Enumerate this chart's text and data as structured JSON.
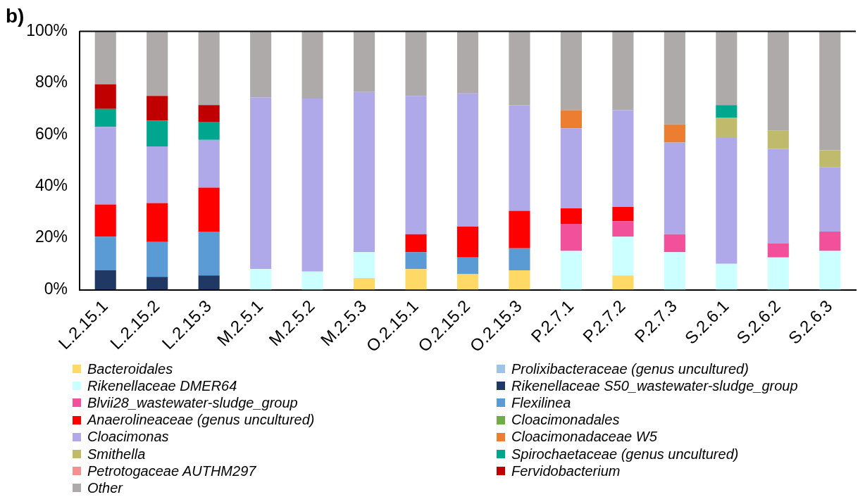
{
  "chart_data": {
    "type": "bar",
    "title": "b)",
    "stacked": true,
    "legend": "bottom",
    "grid": false,
    "categories": [
      "L.2.15.1",
      "L.2.15.2",
      "L.2.15.3",
      "M.2.5.1",
      "M.2.5.2",
      "M.2.5.3",
      "O.2.15.1",
      "O.2.15.2",
      "O.2.15.3",
      "P.2.7.1",
      "P.2.7.2",
      "P.2.7.3",
      "S.2.6.1",
      "S.2.6.2",
      "S.2.6.3"
    ],
    "ylim": [
      0,
      100
    ],
    "yticks": [
      {
        "value": 0,
        "label": "0%"
      },
      {
        "value": 20,
        "label": "20%"
      },
      {
        "value": 40,
        "label": "40%"
      },
      {
        "value": 60,
        "label": "60%"
      },
      {
        "value": 80,
        "label": "80%"
      },
      {
        "value": 100,
        "label": "100%"
      }
    ],
    "series": [
      {
        "name": "Bacteroidales",
        "color": "#ffd966",
        "values": [
          0,
          0,
          0,
          0,
          0,
          4.5,
          8,
          6,
          7.5,
          0,
          5.5,
          0,
          0,
          0,
          0
        ]
      },
      {
        "name": "Prolixibacteraceae (genus uncultured)",
        "color": "#9dc3e6",
        "values": [
          0,
          0,
          0,
          0,
          0,
          0,
          0,
          0,
          0,
          0,
          0,
          0,
          0,
          0,
          0
        ]
      },
      {
        "name": "Rikenellaceae DMER64",
        "color": "#ccffff",
        "values": [
          0,
          0,
          0,
          8,
          7,
          10,
          0,
          0,
          0,
          15,
          15,
          14.5,
          10,
          12.5,
          15
        ]
      },
      {
        "name": "Rikenellaceae S50_wastewater-sludge_group",
        "color": "#203864",
        "values": [
          7.5,
          5,
          5.5,
          0,
          0,
          0,
          0,
          0,
          0,
          0,
          0,
          0,
          0,
          0,
          0
        ]
      },
      {
        "name": "Blvii28_wastewater-sludge_group",
        "color": "#f2509a",
        "values": [
          0,
          0,
          0,
          0,
          0,
          0,
          0,
          0,
          0,
          10.5,
          6,
          7,
          0,
          5.5,
          7.5
        ]
      },
      {
        "name": "Flexilinea",
        "color": "#5b9bd5",
        "values": [
          13,
          13.5,
          17,
          0,
          0,
          0,
          6.5,
          6.5,
          8.5,
          0,
          0,
          0,
          0,
          0,
          0
        ]
      },
      {
        "name": "Anaerolineaceae (genus uncultured)",
        "color": "#ff0000",
        "values": [
          12.5,
          15,
          17,
          0,
          0,
          0,
          7,
          12,
          14.5,
          6,
          5.5,
          0,
          0,
          0,
          0
        ]
      },
      {
        "name": "Cloacimonadales",
        "color": "#70ad47",
        "values": [
          0,
          0,
          0,
          0,
          0,
          0,
          0,
          0,
          0,
          0,
          0,
          0,
          0,
          0,
          0
        ]
      },
      {
        "name": "Cloacimonas",
        "color": "#b0a9e9",
        "values": [
          30,
          22,
          18.5,
          66.5,
          67,
          62,
          53.5,
          51.5,
          41,
          31,
          37.5,
          35.5,
          49,
          36.5,
          25
        ]
      },
      {
        "name": "Cloacimonadaceae W5",
        "color": "#ed7d31",
        "values": [
          0,
          0,
          0,
          0,
          0,
          0,
          0,
          0,
          0,
          7,
          0,
          7,
          0,
          0,
          0
        ]
      },
      {
        "name": "Smithella",
        "color": "#bfba6c",
        "values": [
          0,
          0,
          0,
          0,
          0,
          0,
          0,
          0,
          0,
          0,
          0,
          0,
          7.5,
          7,
          6.5
        ]
      },
      {
        "name": "Spirochaetaceae (genus uncultured)",
        "color": "#00a78e",
        "values": [
          7,
          10,
          7,
          0,
          0,
          0,
          0,
          0,
          0,
          0,
          0,
          0,
          5,
          0,
          0
        ]
      },
      {
        "name": "Petrotogaceae AUTHM297",
        "color": "#f4908f",
        "values": [
          0,
          0,
          0,
          0,
          0,
          0,
          0,
          0,
          0,
          0,
          0,
          0,
          0,
          0,
          0
        ]
      },
      {
        "name": "Fervidobacterium",
        "color": "#c00000",
        "values": [
          9.5,
          9.5,
          6.5,
          0,
          0,
          0,
          0,
          0,
          0,
          0,
          0,
          0,
          0,
          0,
          0
        ]
      },
      {
        "name": "Other",
        "color": "#aeaaaa",
        "values": [
          20.5,
          25,
          28.5,
          25.5,
          26,
          23.5,
          25,
          24,
          28.5,
          30.5,
          30.5,
          36,
          28.5,
          38.5,
          46
        ]
      }
    ]
  }
}
